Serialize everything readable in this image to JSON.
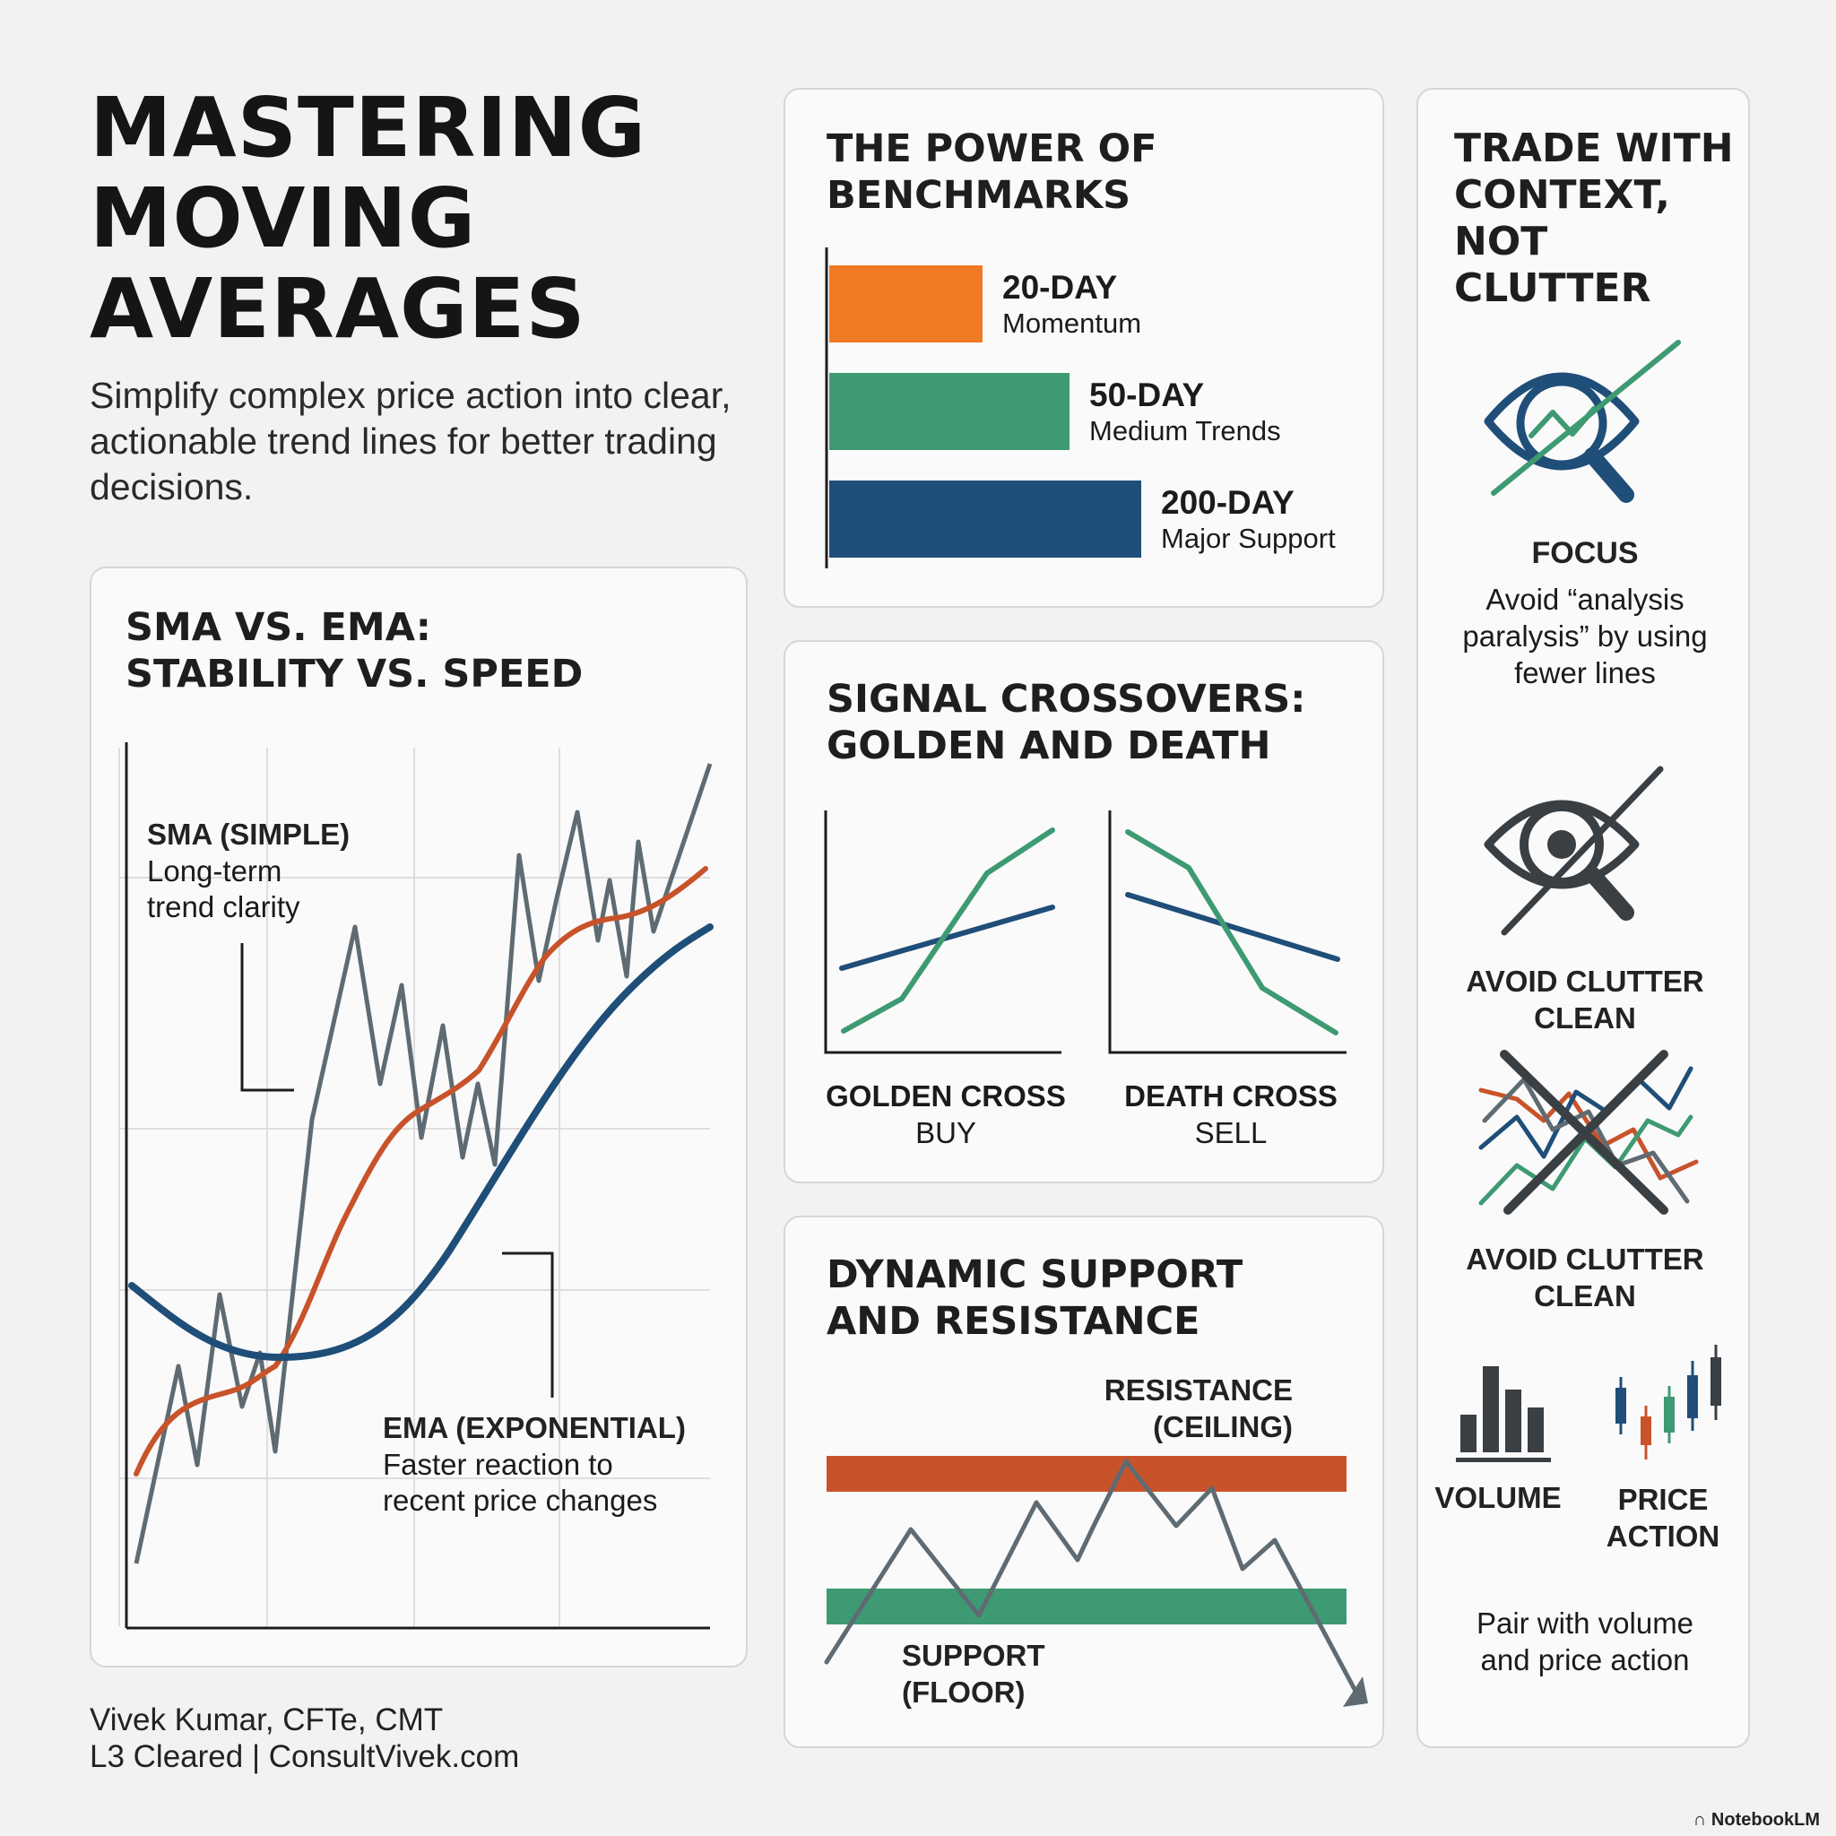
{
  "header": {
    "title_lines": [
      "MASTERING",
      "MOVING",
      "AVERAGES"
    ],
    "subtitle": "Simplify complex price action into clear, actionable trend lines for better trading decisions."
  },
  "sma_ema": {
    "title_lines": [
      "SMA VS. EMA:",
      "STABILITY VS. SPEED"
    ],
    "sma_label": "SMA (SIMPLE)",
    "sma_desc_lines": [
      "Long-term",
      "trend clarity"
    ],
    "ema_label": "EMA (EXPONENTIAL)",
    "ema_desc_lines": [
      "Faster reaction to",
      "recent price changes"
    ]
  },
  "benchmarks": {
    "title_lines": [
      "THE POWER OF",
      "BENCHMARKS"
    ],
    "items": [
      {
        "period": "20-DAY",
        "desc": "Momentum",
        "color": "#ef7a22",
        "relative_length": 0.49
      },
      {
        "period": "50-DAY",
        "desc": "Medium Trends",
        "color": "#3e9a72",
        "relative_length": 0.77
      },
      {
        "period": "200-DAY",
        "desc": "Major Support",
        "color": "#1f4e79",
        "relative_length": 1.0
      }
    ]
  },
  "crossovers": {
    "title_lines": [
      "SIGNAL CROSSOVERS:",
      "GOLDEN AND DEATH"
    ],
    "golden_label": "GOLDEN CROSS",
    "golden_action": "BUY",
    "death_label": "DEATH CROSS",
    "death_action": "SELL"
  },
  "support_resistance": {
    "title_lines": [
      "DYNAMIC SUPPORT",
      "AND RESISTANCE"
    ],
    "resistance_lines": [
      "RESISTANCE",
      "(CEILING)"
    ],
    "support_lines": [
      "SUPPORT",
      "(FLOOR)"
    ]
  },
  "context": {
    "title_lines": [
      "TRADE WITH",
      "CONTEXT,",
      "NOT CLUTTER"
    ],
    "focus_label": "FOCUS",
    "focus_desc_lines": [
      "Avoid “analysis",
      "paralysis” by using",
      "fewer lines"
    ],
    "clutter_label_1_lines": [
      "AVOID CLUTTER",
      "CLEAN"
    ],
    "clutter_label_2_lines": [
      "AVOID CLUTTER",
      "CLEAN"
    ],
    "volume_label": "VOLUME",
    "price_action_lines": [
      "PRICE",
      "ACTION"
    ],
    "pair_desc_lines": [
      "Pair with volume",
      "and price action"
    ]
  },
  "footer": {
    "author": "Vivek Kumar, CFTe, CMT",
    "credentials": "L3 Cleared | ConsultVivek.com"
  },
  "brand": "NotebookLM",
  "colors": {
    "orange": "#ef7a22",
    "green": "#3e9a72",
    "navy": "#1f4e79",
    "red_orange": "#c8532a",
    "gray_line": "#5f6b73",
    "icon_dark": "#3a3f44"
  }
}
